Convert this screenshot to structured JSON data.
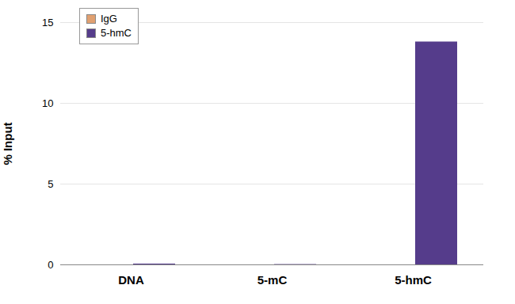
{
  "chart_data": {
    "type": "bar",
    "categories": [
      "DNA",
      "5-mC",
      "5-hmC"
    ],
    "series": [
      {
        "name": "IgG",
        "color": "#e0a070",
        "values": [
          0,
          0,
          0
        ]
      },
      {
        "name": "5-hmC",
        "color": "#553c8b",
        "values": [
          0.05,
          0.02,
          13.8
        ]
      }
    ],
    "ylabel": "% Input",
    "ylim": [
      0,
      15
    ],
    "yticks": [
      0,
      5,
      10,
      15
    ],
    "grid": true,
    "legend": "top-left"
  }
}
